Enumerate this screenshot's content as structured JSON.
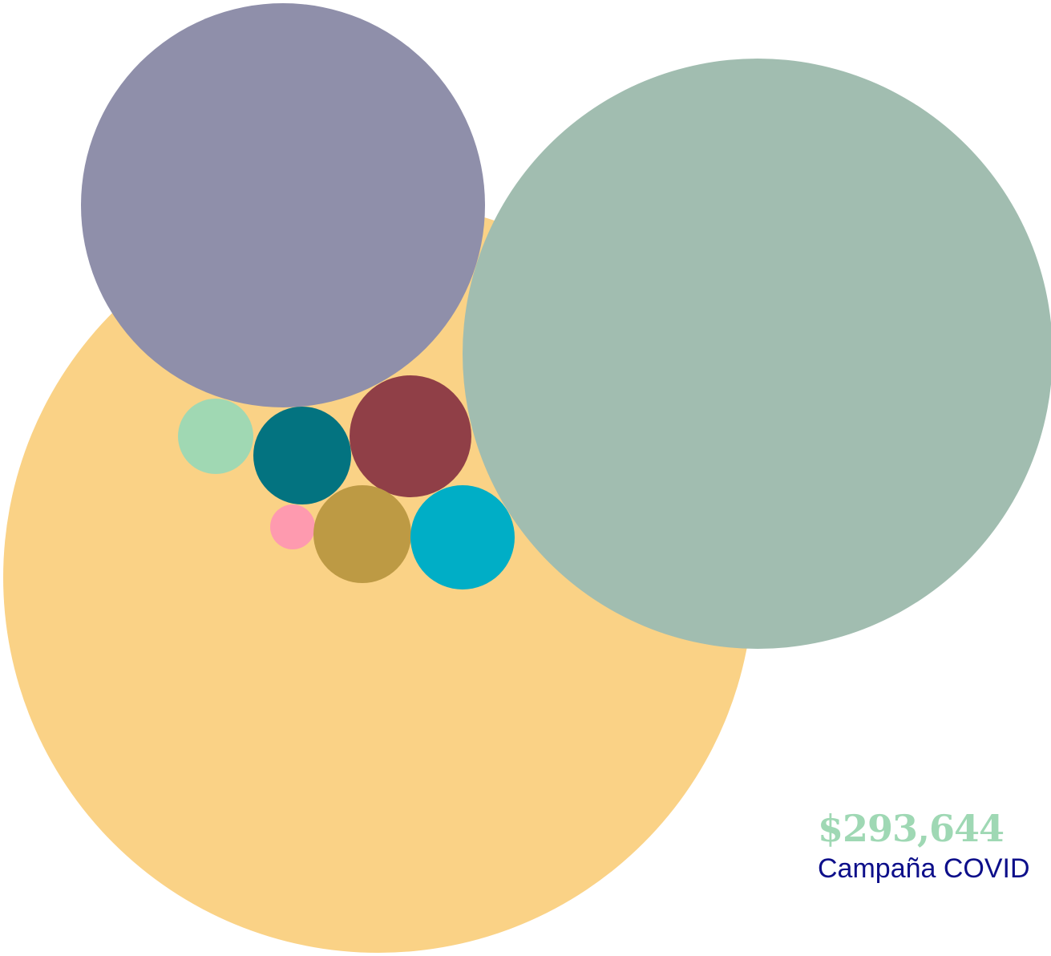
{
  "caption": {
    "value": "$293,644",
    "label": "Campaña COVID",
    "value_color": "#9fd8b4",
    "label_color": "#0d0f8a"
  },
  "chart_data": {
    "type": "bubble",
    "title": "",
    "bubbles": [
      {
        "id": "yellow",
        "color": "#fad286"
      },
      {
        "id": "purple",
        "color": "#8f8faa"
      },
      {
        "id": "sage",
        "color": "#a1bdb0"
      },
      {
        "id": "mint",
        "color": "#a0d8b3"
      },
      {
        "id": "teal",
        "color": "#037380"
      },
      {
        "id": "maroon",
        "color": "#903f47"
      },
      {
        "id": "pink",
        "color": "#fe9aaf"
      },
      {
        "id": "olive",
        "color": "#bd9a44"
      },
      {
        "id": "cyan",
        "color": "#00aec6"
      }
    ]
  }
}
